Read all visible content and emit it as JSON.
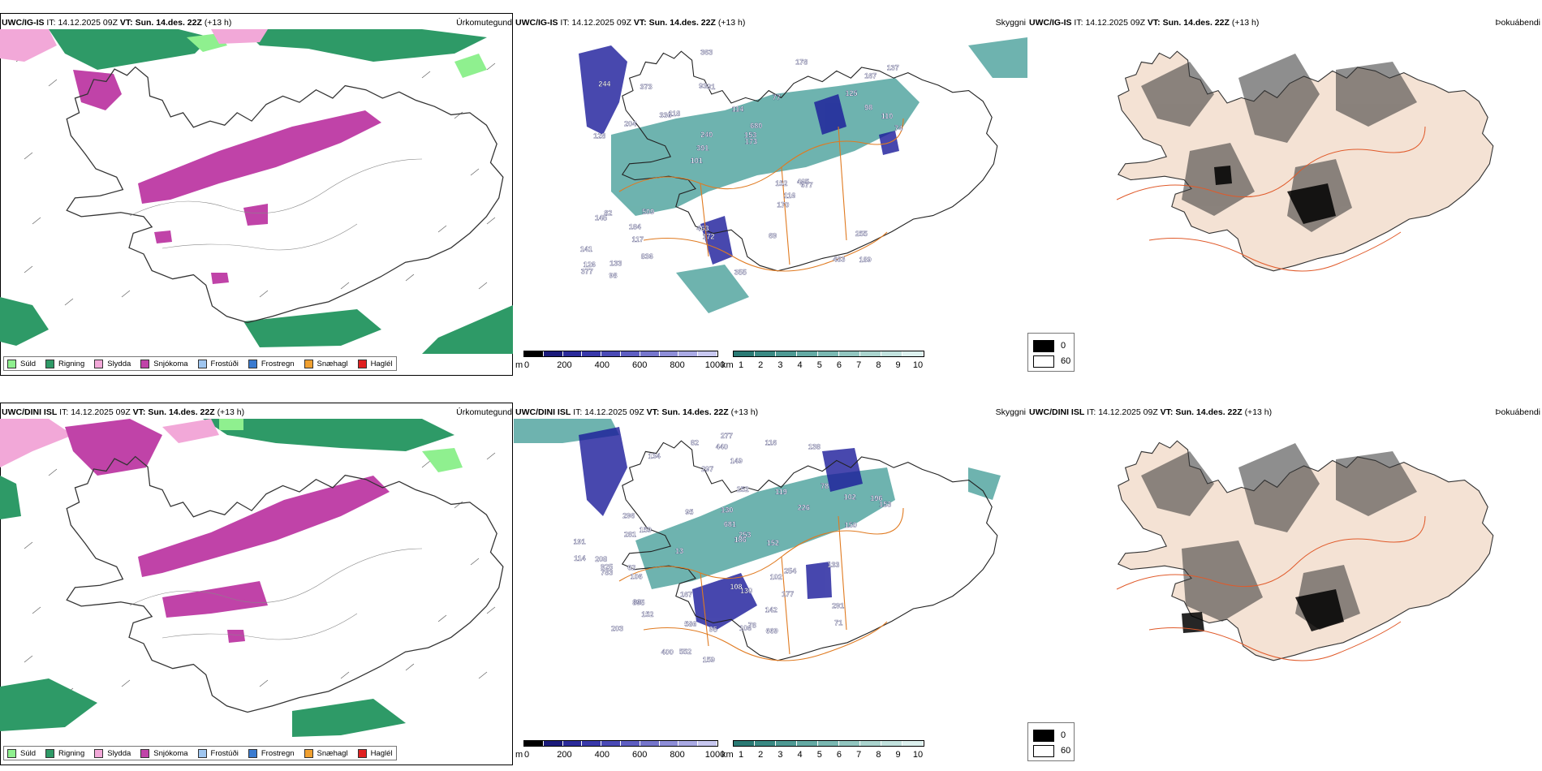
{
  "colors": {
    "rain": "#2e9a67",
    "drizzle": "#8ff08f",
    "sleet": "#f2a8d8",
    "snow": "#c043a8",
    "freezing_drizzle": "#9fc6f0",
    "freezing_rain": "#3a7bd0",
    "snow_pellets": "#f0a030",
    "hail": "#e02020",
    "cloud_low": "#3e9a94",
    "cloud_high": "#1a1a9a",
    "road": "#e07a20",
    "fog_land": "#f4e2d4"
  },
  "rows": [
    {
      "model": "UWC/IG-IS",
      "it_label": "IT:",
      "it_value": "14.12.2025 09Z",
      "vt_label": "VT:",
      "vt_value": "Sun. 14.des. 22Z",
      "lead": "(+13 h)",
      "cloud_labels": [
        "189",
        "128",
        "167",
        "101",
        "77",
        "133",
        "93",
        "114",
        "82",
        "118",
        "141",
        "117",
        "91",
        "680",
        "677",
        "244",
        "363",
        "74",
        "152",
        "98",
        "391",
        "463",
        "240",
        "373",
        "178",
        "509",
        "483",
        "255",
        "465",
        "355",
        "336",
        "204",
        "170",
        "836",
        "110",
        "153",
        "126",
        "172",
        "173",
        "145",
        "125",
        "137",
        "116",
        "69",
        "184",
        "98",
        "377"
      ]
    },
    {
      "model": "UWC/DINI ISL",
      "it_label": "IT:",
      "it_value": "14.12.2025 09Z",
      "vt_label": "VT:",
      "vt_value": "Sun. 14.des. 22Z",
      "lead": "(+13 h)",
      "cloud_labels": [
        "203",
        "138",
        "134",
        "78",
        "130",
        "159",
        "106",
        "98",
        "102",
        "226",
        "208",
        "277",
        "177",
        "186",
        "159",
        "82",
        "71",
        "191",
        "895",
        "552",
        "669",
        "440",
        "297",
        "253",
        "681",
        "586",
        "925",
        "116",
        "252",
        "254",
        "296",
        "152",
        "78",
        "108",
        "291",
        "783",
        "196",
        "152",
        "119",
        "133",
        "153",
        "149",
        "95",
        "62",
        "114",
        "281",
        "102",
        "106",
        "167",
        "142",
        "95",
        "400",
        "130",
        "150",
        "13"
      ]
    }
  ],
  "panels": {
    "precip_type": {
      "label": "Úrkomutegund",
      "legend": [
        "Súld",
        "Rigning",
        "Slydda",
        "Snjókoma",
        "Frostúði",
        "Frostregn",
        "Snæhagl",
        "Haglél"
      ]
    },
    "clouds": {
      "label": "Skyggni",
      "height_unit": "m",
      "height_ticks": [
        "0",
        "200",
        "400",
        "600",
        "800",
        "1000"
      ],
      "cover_unit": "km",
      "cover_ticks": [
        "1",
        "2",
        "3",
        "4",
        "5",
        "6",
        "7",
        "8",
        "9",
        "10"
      ]
    },
    "fog": {
      "label": "Þokuábendi",
      "legend": [
        "0",
        "60"
      ]
    }
  }
}
